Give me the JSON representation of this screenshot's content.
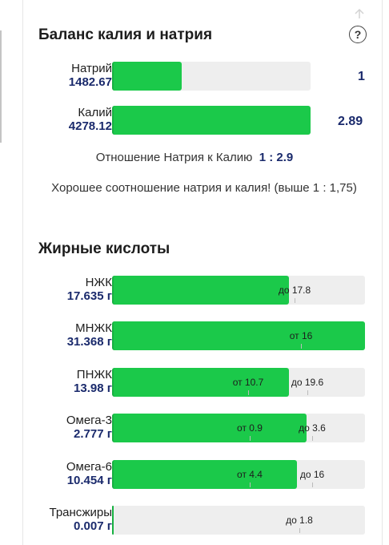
{
  "sodium_potassium": {
    "title": "Баланс калия и натрия",
    "help_icon": "question-icon",
    "rows": [
      {
        "name": "Натрий",
        "value": "1482.67",
        "ratio_value": "1",
        "fill_fraction": 0.35
      },
      {
        "name": "Калий",
        "value": "4278.12",
        "ratio_value": "2.89",
        "fill_fraction": 1.0
      }
    ],
    "ratio_label": "Отношение Натрия к Калию",
    "ratio_text": "1 : 2.9",
    "note": "Хорошее соотношение натрия и калия! (выше 1 : 1,75)"
  },
  "fatty_acids": {
    "title": "Жирные кислоты",
    "rows": [
      {
        "name": "НЖК",
        "value": "17.635 г",
        "markers": [
          "до 17.8"
        ],
        "fill_fraction": 0.7
      },
      {
        "name": "МНЖК",
        "value": "31.368 г",
        "markers": [
          "от 16"
        ],
        "fill_fraction": 1.0
      },
      {
        "name": "ПНЖК",
        "value": "13.98 г",
        "markers": [
          "от 10.7",
          "до 19.6"
        ],
        "fill_fraction": 0.7
      },
      {
        "name": "Омега-3",
        "value": "2.777 г",
        "markers": [
          "от 0.9",
          "до 3.6"
        ],
        "fill_fraction": 0.77
      },
      {
        "name": "Омега-6",
        "value": "10.454 г",
        "markers": [
          "от 4.4",
          "до 16"
        ],
        "fill_fraction": 0.73
      },
      {
        "name": "Трансжиры",
        "value": "0.007 г",
        "markers": [
          "до 1.8"
        ],
        "fill_fraction": 0.005
      }
    ]
  }
}
